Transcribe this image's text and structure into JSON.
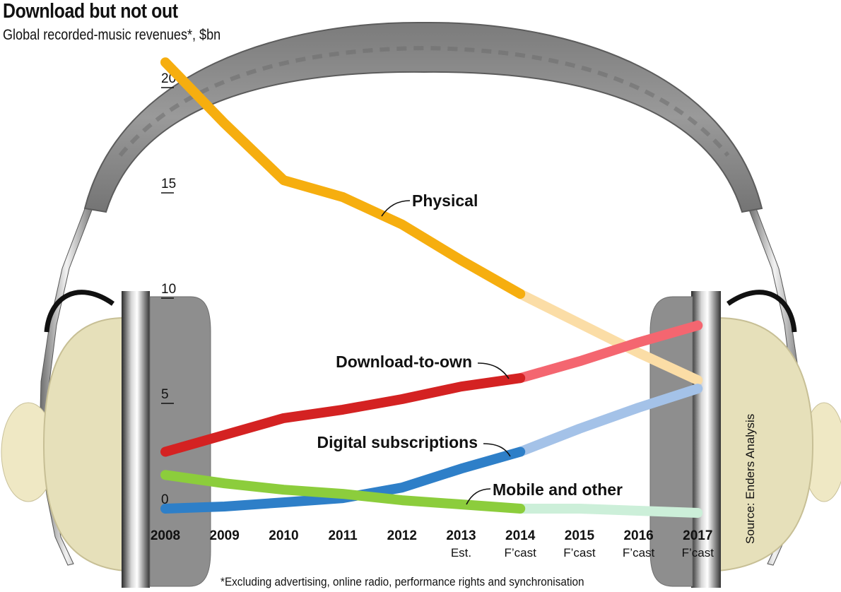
{
  "title": "Download but not out",
  "subtitle": "Global recorded-music revenues*, $bn",
  "footnote": "*Excluding advertising, online radio, performance rights and synchronisation",
  "source": "Source: Enders Analysis",
  "colors": {
    "physical": "#F6AE0F",
    "physical_forecast": "#FBDDA6",
    "download": "#D42222",
    "download_forecast": "#F46670",
    "subscriptions": "#2E7FC8",
    "subscriptions_forecast": "#A4C2E8",
    "mobile": "#8CCD3C",
    "mobile_forecast": "#CCEFD9",
    "headphone_band": "#8A8A8A",
    "earcup": "#E6E0BA",
    "cushion": "#8E8E8E"
  },
  "chart_data": {
    "type": "line",
    "title": "Download but not out",
    "ylabel": "Global recorded-music revenues*, $bn",
    "x": [
      "2008",
      "2009",
      "2010",
      "2011",
      "2012",
      "2013",
      "2014",
      "2015",
      "2016",
      "2017"
    ],
    "x_sublabels": [
      "",
      "",
      "",
      "",
      "",
      "Est.",
      "F’cast",
      "F’cast",
      "F’cast",
      "F’cast"
    ],
    "yticks": [
      0,
      5,
      10,
      15,
      20
    ],
    "ylim": [
      0,
      21.5
    ],
    "forecast_start_index": 6,
    "series": [
      {
        "name": "Physical",
        "key": "physical",
        "values": [
          21.2,
          18.3,
          15.6,
          14.8,
          13.5,
          11.8,
          10.2,
          8.8,
          7.4,
          6.1
        ]
      },
      {
        "name": "Download-to-own",
        "key": "download",
        "values": [
          2.7,
          3.5,
          4.3,
          4.7,
          5.2,
          5.8,
          6.2,
          7.0,
          7.9,
          8.7
        ]
      },
      {
        "name": "Digital subscriptions",
        "key": "subscriptions",
        "values": [
          0.0,
          0.1,
          0.3,
          0.5,
          1.0,
          1.9,
          2.7,
          3.8,
          4.8,
          5.7
        ]
      },
      {
        "name": "Mobile and other",
        "key": "mobile",
        "values": [
          1.6,
          1.2,
          0.9,
          0.7,
          0.4,
          0.2,
          0.0,
          0.0,
          -0.1,
          -0.2
        ]
      }
    ]
  }
}
